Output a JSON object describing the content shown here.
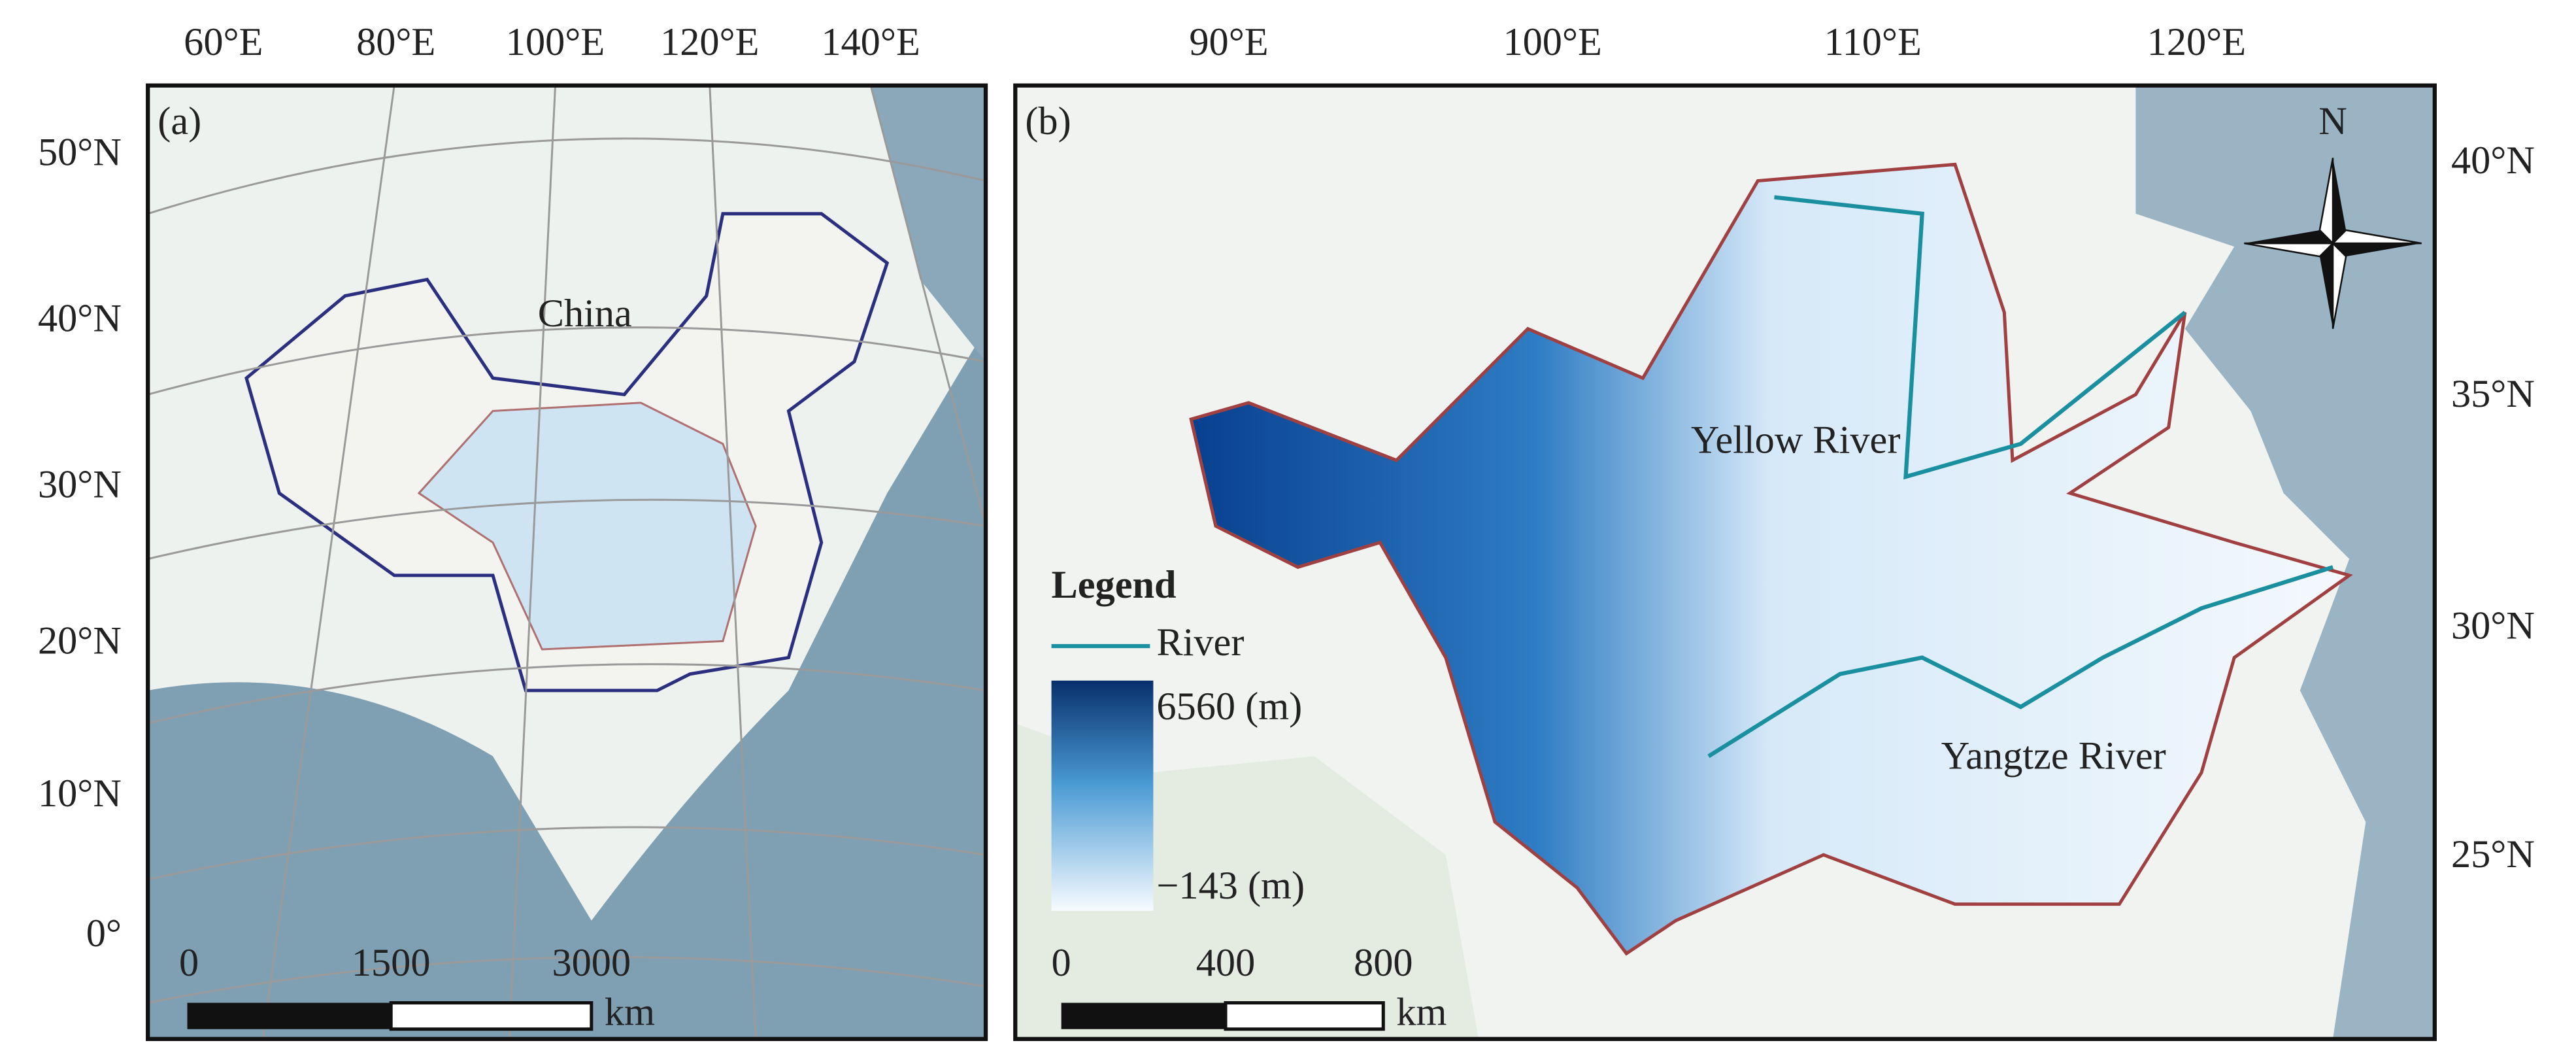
{
  "panel_a": {
    "label": "(a)",
    "lon_labels": [
      "60°E",
      "80°E",
      "100°E",
      "120°E",
      "140°E"
    ],
    "lat_labels": [
      "50°N",
      "40°N",
      "30°N",
      "20°N",
      "10°N",
      "0°"
    ],
    "country_label": "China",
    "scale_bar": {
      "ticks": [
        "0",
        "1500",
        "3000"
      ],
      "unit": "km"
    }
  },
  "panel_b": {
    "label": "(b)",
    "lon_labels": [
      "90°E",
      "100°E",
      "110°E",
      "120°E"
    ],
    "lat_labels": [
      "40°N",
      "35°N",
      "30°N",
      "25°N"
    ],
    "north_label": "N",
    "legend": {
      "title": "Legend",
      "river": "River",
      "max": "6560 (m)",
      "min": "−143 (m)"
    },
    "rivers": [
      "Yellow River",
      "Yangtze River"
    ],
    "scale_bar": {
      "ticks": [
        "0",
        "400",
        "800"
      ],
      "unit": "km"
    }
  }
}
